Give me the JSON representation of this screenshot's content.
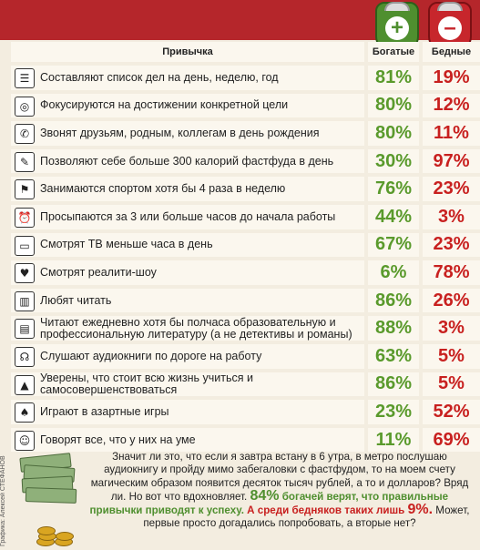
{
  "header": {
    "habit_label": "Привычка",
    "rich_label": "Богатые",
    "poor_label": "Бедные",
    "rich_sign": "+",
    "poor_sign": "–"
  },
  "rows": [
    {
      "icon": "list-icon",
      "glyph": "☰",
      "text": "Составляют список дел на день, неделю, год",
      "rich": "81%",
      "poor": "19%"
    },
    {
      "icon": "target-icon",
      "glyph": "◎",
      "text": "Фокусируются на достижении конкретной цели",
      "rich": "80%",
      "poor": "12%"
    },
    {
      "icon": "phone-icon",
      "glyph": "✆",
      "text": "Звонят друзьям, родным, коллегам в день рождения",
      "rich": "80%",
      "poor": "11%"
    },
    {
      "icon": "fastfood-icon",
      "glyph": "✎",
      "text": "Позволяют себе больше 300 калорий фастфуда в день",
      "rich": "30%",
      "poor": "97%"
    },
    {
      "icon": "runner-icon",
      "glyph": "⚑",
      "text": "Занимаются спортом хотя бы 4 раза в неделю",
      "rich": "76%",
      "poor": "23%"
    },
    {
      "icon": "alarm-clock-icon",
      "glyph": "⏰",
      "text": "Просыпаются за 3 или больше часов до начала работы",
      "rich": "44%",
      "poor": "3%"
    },
    {
      "icon": "tv-icon",
      "glyph": "▭",
      "text": "Смотрят ТВ меньше часа в день",
      "rich": "67%",
      "poor": "23%"
    },
    {
      "icon": "reality-tv-icon",
      "glyph": "♥",
      "text": "Смотрят реалити-шоу",
      "rich": "6%",
      "poor": "78%"
    },
    {
      "icon": "book-icon",
      "glyph": "▥",
      "text": "Любят читать",
      "rich": "86%",
      "poor": "26%"
    },
    {
      "icon": "books-icon",
      "glyph": "▤",
      "text": "Читают ежедневно хотя бы полчаса образовательную и профессиональную литературу (а не детективы и романы)",
      "rich": "88%",
      "poor": "3%"
    },
    {
      "icon": "headphones-icon",
      "glyph": "☊",
      "text": "Слушают аудиокниги по дороге на работу",
      "rich": "63%",
      "poor": "5%"
    },
    {
      "icon": "graduation-cap-icon",
      "glyph": "▲",
      "text": "Уверены, что стоит всю жизнь учиться и самосовершенствоваться",
      "rich": "86%",
      "poor": "5%"
    },
    {
      "icon": "spade-icon",
      "glyph": "♠",
      "text": "Играют в азартные игры",
      "rich": "23%",
      "poor": "52%"
    },
    {
      "icon": "speech-bubble-icon",
      "glyph": "☺",
      "text": "Говорят все, что у них на уме",
      "rich": "11%",
      "poor": "69%"
    }
  ],
  "credit": "Графика: Алексей СТЕФАНОВ",
  "conclusion": {
    "part1": "Значит ли это, что если я завтра встану в 6 утра, в метро послушаю аудиокнигу и пройду мимо забегаловки с фастфудом, то на моем счету магическим образом появится десяток тысяч рублей, а то и долларов? Вряд ли. Но вот что вдохновляет. ",
    "rich_pct": "84%",
    "rich_text": " богачей верят, что правильные привычки приводят к успеху.",
    "poor_text": " А среди бедняков таких лишь ",
    "poor_pct": "9%.",
    "part2": " Может, первые просто догадались попробовать, а вторые нет?"
  },
  "colors": {
    "header_red": "#b5262b",
    "rich_green": "#5a9a2c",
    "poor_red": "#c8201f",
    "background": "#f3ede0"
  }
}
